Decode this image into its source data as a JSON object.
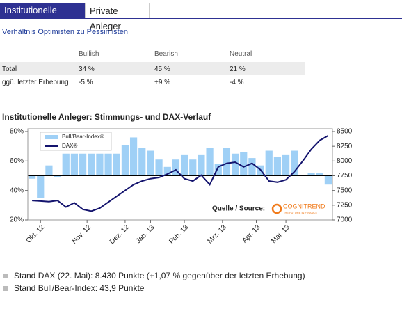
{
  "tabs": [
    "Institutionelle Anleger",
    "Private Anleger"
  ],
  "subtitle": "Verhältnis Optimisten zu Pessimisten",
  "table": {
    "header": [
      "Bullish",
      "Bearish",
      "Neutral"
    ],
    "rows": [
      [
        "Total",
        "34 %",
        "45 %",
        "21 %"
      ],
      [
        "ggü. letzter Erhebung",
        "-5 %",
        "+9 %",
        "-4 %"
      ]
    ]
  },
  "chart_data": {
    "type": "bar-line",
    "title": "Institutionelle Anleger: Stimmungs- und DAX-Verlauf",
    "x": [
      0,
      1,
      2,
      3,
      4,
      5,
      6,
      7,
      8,
      9,
      10,
      11,
      12,
      13,
      14,
      15,
      16,
      17,
      18,
      19,
      20,
      21,
      22,
      23,
      24,
      25,
      26,
      27,
      28,
      29,
      30,
      31,
      32,
      33,
      34,
      35
    ],
    "xlim": [
      -0.5,
      35.5
    ],
    "xticks": [
      {
        "value": 1,
        "label": "Okt. 12"
      },
      {
        "value": 6.5,
        "label": "Nov. 12"
      },
      {
        "value": 11,
        "label": "Dez. 12"
      },
      {
        "value": 14,
        "label": "Jan. 13"
      },
      {
        "value": 18,
        "label": "Feb. 13"
      },
      {
        "value": 22.5,
        "label": "Mrz. 13"
      },
      {
        "value": 26.5,
        "label": "Apr. 13"
      },
      {
        "value": 30,
        "label": "Mai. 13"
      }
    ],
    "series": [
      {
        "name": "Bull/Bear-Index®",
        "type": "bar",
        "color": "#9fd0f6",
        "values": [
          48,
          35,
          57,
          49,
          65,
          65,
          65,
          65,
          65,
          65,
          65,
          71,
          76,
          69,
          67,
          61,
          56,
          61,
          64,
          61,
          64,
          69,
          58,
          69,
          65,
          66,
          62,
          57,
          67,
          63,
          64,
          67,
          null,
          52,
          52,
          44
        ]
      },
      {
        "name": "DAX®",
        "type": "line",
        "axis": "y2",
        "color": "#14146e",
        "values": [
          7330,
          7320,
          7310,
          7330,
          7220,
          7290,
          7180,
          7150,
          7200,
          7300,
          7400,
          7500,
          7600,
          7660,
          7700,
          7720,
          7780,
          7850,
          7700,
          7660,
          7760,
          7600,
          7900,
          7960,
          7980,
          7900,
          7960,
          7850,
          7660,
          7640,
          7680,
          7820,
          8000,
          8200,
          8350,
          8430
        ]
      }
    ],
    "ylim": [
      20,
      80
    ],
    "yticks": [
      {
        "value": 20,
        "label": "20%"
      },
      {
        "value": 40,
        "label": "40%"
      },
      {
        "value": 60,
        "label": "60%"
      },
      {
        "value": 80,
        "label": "80%"
      }
    ],
    "y2lim": [
      7000,
      8500
    ],
    "y2ticks": [
      7000,
      7250,
      7500,
      7750,
      8000,
      8250,
      8500
    ],
    "source": "Quelle / Source:",
    "logo": [
      "COGNITREND",
      "THE FUTURE IN FINANCE"
    ]
  },
  "notes": [
    "Stand DAX (22. Mai): 8.430 Punkte (+1,07 % gegenüber der letzten Erhebung)",
    "Stand Bull/Bear-Index: 43,9 Punkte"
  ]
}
